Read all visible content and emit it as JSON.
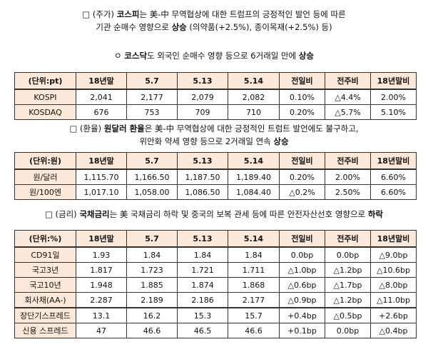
{
  "sections": {
    "stock": {
      "line1": {
        "prefix": "□ (주가) ",
        "b1": "코스피",
        "mid": "는 美-中 무역협상에 대한 트럼프의 긍정적인 발언 등에 따른"
      },
      "line2": {
        "text": "기관 순매수 영향으로 ",
        "b1": "상승",
        "rest": " (의약품(+2.5%), 종이목재(+2.5%) 등)"
      },
      "line3": {
        "prefix": "ㅇ ",
        "b1": "코스닥",
        "mid": "도 외국인 순매수 영향 등으로 6거래일 만에 ",
        "b2": "상승"
      }
    },
    "fx": {
      "line1": {
        "prefix": "□ (환율) ",
        "b1": "원달러 환율",
        "mid": "은 美-中 무역협상에 대한 긍정적인 트럼트 발언에도 불구하고,"
      },
      "line2": {
        "text": "위안화 약세 영향 등으로 2거래일 연속 ",
        "b1": "상승"
      }
    },
    "rates": {
      "line1": {
        "prefix": "□ (금리) ",
        "b1": "국채금리",
        "mid": "는 美 국채금리 하락 및 중국의 보복 관세 등에 따른 안전자산선호 영향으로 ",
        "b2": "하락"
      }
    }
  },
  "tables": {
    "stock": {
      "header": [
        "(단위:pt)",
        "18년말",
        "5.7",
        "5.13",
        "5.14",
        "전일비",
        "전주비",
        "18년말비"
      ],
      "rows": [
        [
          "KOSPI",
          "2,041",
          "2,177",
          "2,079",
          "2,082",
          "0.10%",
          "△4.4%",
          "2.00%"
        ],
        [
          "KOSDAQ",
          "676",
          "753",
          "709",
          "710",
          "0.20%",
          "△5.7%",
          "5.10%"
        ]
      ]
    },
    "fx": {
      "header": [
        "(단위:원)",
        "18년말",
        "5.7",
        "5.13",
        "5.14",
        "전일비",
        "전주비",
        "18년말비"
      ],
      "rows": [
        [
          "원/달러",
          "1,115.70",
          "1,166.50",
          "1,187.50",
          "1,189.40",
          "0.20%",
          "2.00%",
          "6.60%"
        ],
        [
          "원/100엔",
          "1,017.10",
          "1,058.00",
          "1,086.50",
          "1,084.40",
          "△0.2%",
          "2.50%",
          "6.60%"
        ]
      ]
    },
    "rates": {
      "header": [
        "(단위:%)",
        "18년말",
        "5.7",
        "5.13",
        "5.14",
        "전일비",
        "전주비",
        "18년말비"
      ],
      "rows": [
        [
          "CD91일",
          "1.93",
          "1.84",
          "1.84",
          "1.84",
          "0.0bp",
          "0.0bp",
          "△9.0bp"
        ],
        [
          "국고3년",
          "1.817",
          "1.723",
          "1.721",
          "1.711",
          "△1.0bp",
          "△1.2bp",
          "△10.6bp"
        ],
        [
          "국고10년",
          "1.948",
          "1.885",
          "1.874",
          "1.868",
          "△0.6bp",
          "△1.7bp",
          "△8.0bp"
        ],
        [
          "회사채(AA-)",
          "2.287",
          "2.189",
          "2.186",
          "2.177",
          "△0.9bp",
          "△1.2bp",
          "△11.0bp"
        ],
        [
          "장단기스프레드",
          "13.1",
          "16.2",
          "15.3",
          "15.7",
          "+0.4bp",
          "△0.5bp",
          "+2.6bp"
        ],
        [
          "신용 스프레드",
          "47",
          "46.6",
          "46.5",
          "46.6",
          "+0.1bp",
          "0.0bp",
          "△0.4bp"
        ]
      ]
    }
  }
}
